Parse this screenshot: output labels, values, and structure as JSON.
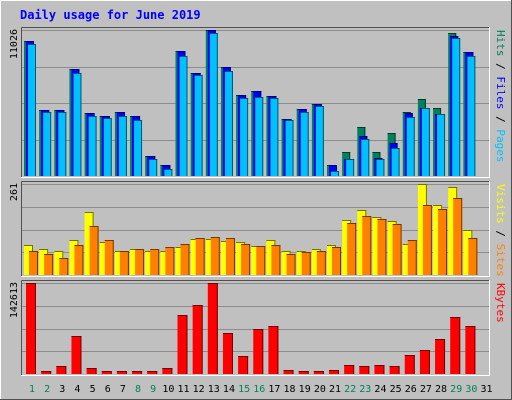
{
  "chart_data": {
    "title": "Daily usage for June 2019",
    "colors": {
      "background": "#c0c0c0",
      "frame_light": "#ffffff",
      "frame_dark": "#505050",
      "title": "#0000ff",
      "hits": "#00805c",
      "files": "#0000ff",
      "pages": "#00c0ff",
      "visits": "#ffff00",
      "sites": "#ff8000",
      "kbytes": "#ff0000",
      "weekend_label": "#00805c",
      "weekday_label": "#000000"
    },
    "days": [
      "1",
      "2",
      "3",
      "4",
      "5",
      "6",
      "7",
      "8",
      "9",
      "10",
      "11",
      "12",
      "13",
      "14",
      "15",
      "16",
      "17",
      "18",
      "19",
      "20",
      "21",
      "22",
      "23",
      "24",
      "25",
      "26",
      "27",
      "28",
      "29",
      "30",
      "31"
    ],
    "weekend_days": [
      1,
      2,
      8,
      9,
      15,
      16,
      22,
      23,
      29,
      30
    ],
    "panels": [
      {
        "type": "bar",
        "ylabel": [
          "Pages",
          "Files",
          "Hits"
        ],
        "ymax_label": "11026",
        "ymax": 11026,
        "series": [
          {
            "name": "Hits",
            "color": "hits",
            "values": [
              10200,
              5000,
              4950,
              8050,
              4750,
              4500,
              4800,
              4500,
              1500,
              800,
              9450,
              7800,
              11026,
              8250,
              6100,
              6400,
              6050,
              4300,
              5050,
              5400,
              800,
              1850,
              3700,
              1850,
              3250,
              4800,
              5800,
              5150,
              10800,
              9350,
              0
            ]
          },
          {
            "name": "Files",
            "color": "files",
            "values": [
              10200,
              5000,
              4950,
              8050,
              4750,
              4500,
              4800,
              4500,
              1500,
              800,
              9450,
              7800,
              11026,
              8250,
              6100,
              6400,
              6050,
              4300,
              5050,
              5400,
              800,
              1300,
              3000,
              1350,
              2500,
              4750,
              5100,
              4700,
              10600,
              9350,
              0
            ]
          },
          {
            "name": "Pages",
            "color": "pages",
            "values": [
              9950,
              4850,
              4800,
              7750,
              4500,
              4400,
              4550,
              4250,
              1300,
              550,
              9100,
              7600,
              10800,
              7900,
              5900,
              6000,
              5900,
              4200,
              4850,
              5300,
              400,
              1300,
              2800,
              1300,
              2100,
              4450,
              5100,
              4650,
              10400,
              9050,
              0
            ]
          }
        ]
      },
      {
        "type": "bar",
        "ylabel": [
          "Sites",
          "Visits"
        ],
        "ymax_label": "261",
        "ymax": 261,
        "series": [
          {
            "name": "Visits",
            "color": "visits",
            "values": [
              85,
              75,
              70,
              100,
              180,
              95,
              70,
              75,
              70,
              68,
              80,
              103,
              103,
              98,
              95,
              83,
              100,
              68,
              70,
              75,
              85,
              158,
              185,
              165,
              155,
              90,
              261,
              200,
              253,
              130,
              0
            ]
          },
          {
            "name": "Sites",
            "color": "sites",
            "values": [
              70,
              60,
              50,
              85,
              140,
              100,
              70,
              75,
              75,
              80,
              88,
              105,
              110,
              105,
              90,
              83,
              85,
              60,
              65,
              70,
              80,
              150,
              170,
              160,
              145,
              100,
              200,
              190,
              220,
              105,
              0
            ]
          }
        ]
      },
      {
        "type": "bar",
        "ylabel": [
          "KBytes"
        ],
        "ymax_label": "142613",
        "ymax": 142613,
        "series": [
          {
            "name": "KBytes",
            "color": "kbytes",
            "values": [
              142613,
              5000,
              13000,
              60000,
              10000,
              4500,
              5000,
              5000,
              4000,
              9000,
              92000,
              108000,
              142613,
              65000,
              28000,
              70000,
              75000,
              6000,
              4500,
              4000,
              7000,
              14000,
              12000,
              14000,
              12000,
              30000,
              37000,
              55000,
              90000,
              75000,
              0
            ]
          }
        ]
      }
    ]
  }
}
